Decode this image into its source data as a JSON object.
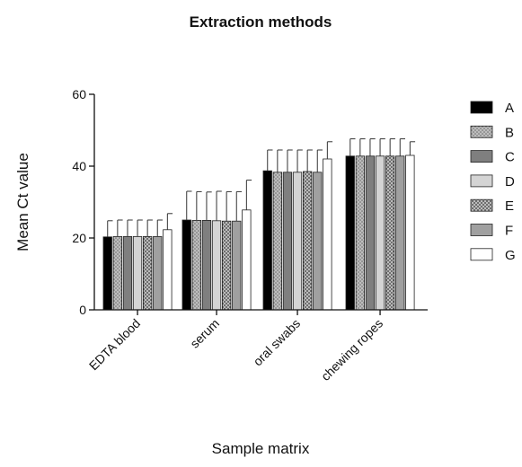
{
  "chart_data": {
    "type": "bar",
    "title": "Extraction methods",
    "xlabel": "Sample matrix",
    "ylabel": "Mean Ct value",
    "ylim": [
      0,
      60
    ],
    "yticks": [
      0,
      20,
      40,
      60
    ],
    "categories": [
      "EDTA blood",
      "serum",
      "oral swabs",
      "chewing ropes"
    ],
    "legend_position": "right",
    "error_bars": true,
    "series": [
      {
        "name": "A",
        "fill": "#000000",
        "pattern": "solid",
        "values": [
          20.3,
          25.0,
          38.7,
          42.8
        ],
        "errors": [
          4.5,
          8.0,
          5.8,
          4.8
        ]
      },
      {
        "name": "B",
        "fill": "#b4b4b4",
        "pattern": "dots",
        "values": [
          20.4,
          24.9,
          38.3,
          42.8
        ],
        "errors": [
          4.6,
          8.0,
          6.2,
          4.8
        ]
      },
      {
        "name": "C",
        "fill": "#7f7f7f",
        "pattern": "solid",
        "values": [
          20.4,
          24.9,
          38.3,
          42.8
        ],
        "errors": [
          4.6,
          7.9,
          6.2,
          4.8
        ]
      },
      {
        "name": "D",
        "fill": "#d4d4d4",
        "pattern": "solid",
        "values": [
          20.4,
          24.8,
          38.3,
          42.8
        ],
        "errors": [
          4.6,
          8.2,
          6.2,
          4.8
        ]
      },
      {
        "name": "E",
        "fill": "#707070",
        "pattern": "crosshatch",
        "values": [
          20.4,
          24.7,
          38.5,
          42.8
        ],
        "errors": [
          4.6,
          8.2,
          6.0,
          4.8
        ]
      },
      {
        "name": "F",
        "fill": "#a0a0a0",
        "pattern": "solid",
        "values": [
          20.4,
          24.7,
          38.3,
          42.8
        ],
        "errors": [
          4.6,
          8.2,
          6.2,
          4.8
        ]
      },
      {
        "name": "G",
        "fill": "#ffffff",
        "pattern": "outline",
        "values": [
          22.3,
          27.8,
          42.0,
          43.0
        ],
        "errors": [
          4.5,
          8.3,
          4.8,
          3.8
        ]
      }
    ]
  }
}
